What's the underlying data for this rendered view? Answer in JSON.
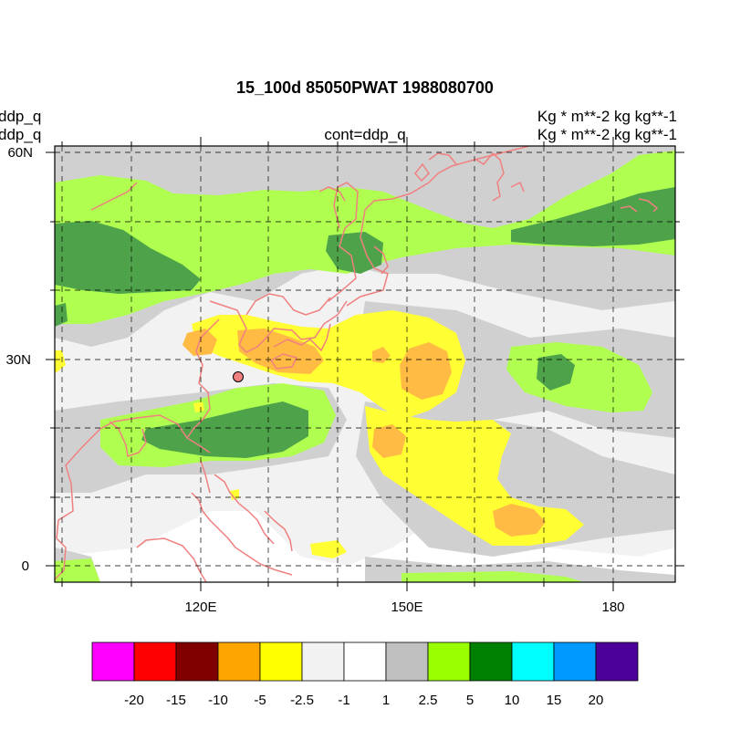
{
  "title": "15_100d 85050PWAT  1988080700",
  "left_labels": [
    "ddp_q",
    "ddp_q"
  ],
  "center_label": "cont=ddp_q",
  "right_labels": [
    "Kg   * m**-2 kg kg**-1",
    "Kg   * m**-2 kg kg**-1"
  ],
  "map": {
    "lon_ticks": [
      "120E",
      "150E",
      "180"
    ],
    "lat_ticks": [
      "60N",
      "30N",
      "0"
    ]
  },
  "colorbar": {
    "colors": [
      "#ff00ff",
      "#ff0000",
      "#800000",
      "#ffa500",
      "#ffff00",
      "#f2f2f2",
      "#ffffff",
      "#c0c0c0",
      "#99ff00",
      "#008000",
      "#00ffff",
      "#0099ff",
      "#4b0099"
    ],
    "labels": [
      "-20",
      "-15",
      "-10",
      "-5",
      "-2.5",
      "-1",
      "1",
      "2.5",
      "5",
      "10",
      "15",
      "20"
    ]
  },
  "marker": {
    "color": "#f08080"
  },
  "colors": {
    "light_gray": "#f2f2f2",
    "gray": "#d0d0d0",
    "lime": "#b0ff50",
    "dark_green": "#4ea24a",
    "yellow": "#ffff33",
    "orange": "#ffbb44",
    "coast": "#f08080"
  }
}
